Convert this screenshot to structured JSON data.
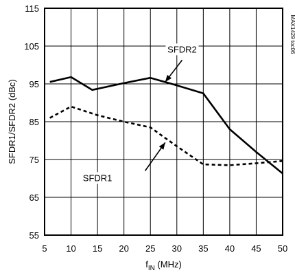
{
  "chart_data": {
    "type": "line",
    "xlabel_main": "f",
    "xlabel_sub": "IN",
    "xlabel_unit": " (MHz)",
    "ylabel": "SFDR1/SFDR2 (dBc)",
    "side_id": "MAX1429 toc06",
    "xlim": [
      5,
      50
    ],
    "ylim": [
      55,
      115
    ],
    "x_ticks": [
      "5",
      "10",
      "15",
      "20",
      "25",
      "30",
      "35",
      "40",
      "45",
      "50"
    ],
    "y_ticks": [
      "55",
      "65",
      "75",
      "85",
      "95",
      "105",
      "115"
    ],
    "grid": true,
    "series": [
      {
        "name": "SFDR2",
        "style": "solid",
        "x": [
          6,
          10,
          14,
          20,
          25,
          30,
          35,
          40,
          45,
          50
        ],
        "y": [
          95.5,
          96.8,
          93.4,
          95.2,
          96.6,
          94.6,
          92.5,
          83,
          77,
          71.3
        ]
      },
      {
        "name": "SFDR1",
        "style": "dashed",
        "x": [
          6,
          10,
          15,
          20,
          25,
          30,
          35,
          40,
          45,
          50
        ],
        "y": [
          86,
          89,
          86.7,
          85,
          83.5,
          78.5,
          73.7,
          73.5,
          74,
          74.6
        ]
      }
    ],
    "annotations": [
      {
        "text": "SFDR2",
        "series": "SFDR2",
        "label_at": [
          31,
          103.3
        ],
        "arrow_from": [
          31,
          101.3
        ],
        "arrow_to": [
          27.8,
          95.5
        ]
      },
      {
        "text": "SFDR1",
        "series": "SFDR1",
        "label_at": [
          15,
          69.3
        ],
        "arrow_from": [
          24,
          72
        ],
        "arrow_to": [
          27.8,
          79.5
        ]
      }
    ]
  }
}
